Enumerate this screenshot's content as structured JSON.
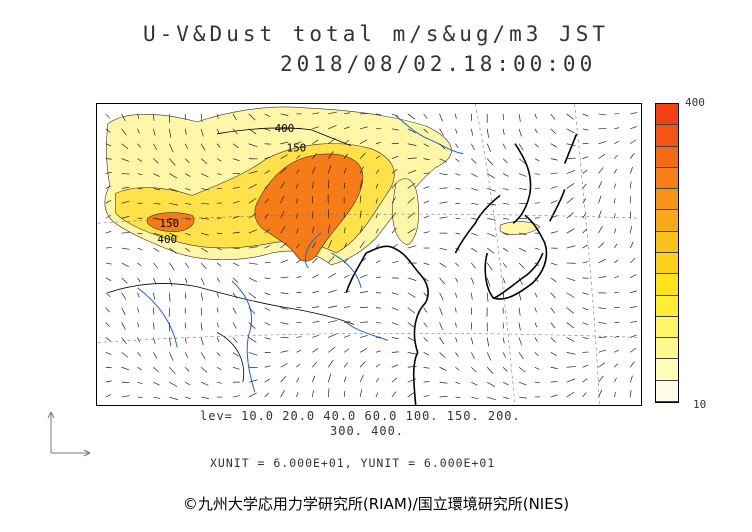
{
  "title": {
    "line1": "U-V&Dust total m/s&ug/m3 JST",
    "line2": "2018/08/02.18:00:00"
  },
  "contour_labels": [
    "400",
    "150",
    "150",
    "400"
  ],
  "colorbar": {
    "max_label": "400",
    "min_label": "10",
    "colors": [
      "#fffde8",
      "#fffbb8",
      "#fff98c",
      "#fff566",
      "#ffee33",
      "#fde21c",
      "#fbd21b",
      "#f9c21a",
      "#f8a818",
      "#f79417",
      "#f67f15",
      "#f56a13",
      "#f45512",
      "#f44010"
    ]
  },
  "levels": {
    "line1": "lev=  10.0  20.0  40.0  60.0  100.  150.  200.",
    "line2": "300.  400."
  },
  "units": "XUNIT = 6.000E+01, YUNIT = 6.000E+01",
  "copyright": "©九州大学応用力学研究所(RIAM)/国立環境研究所(NIES)"
}
